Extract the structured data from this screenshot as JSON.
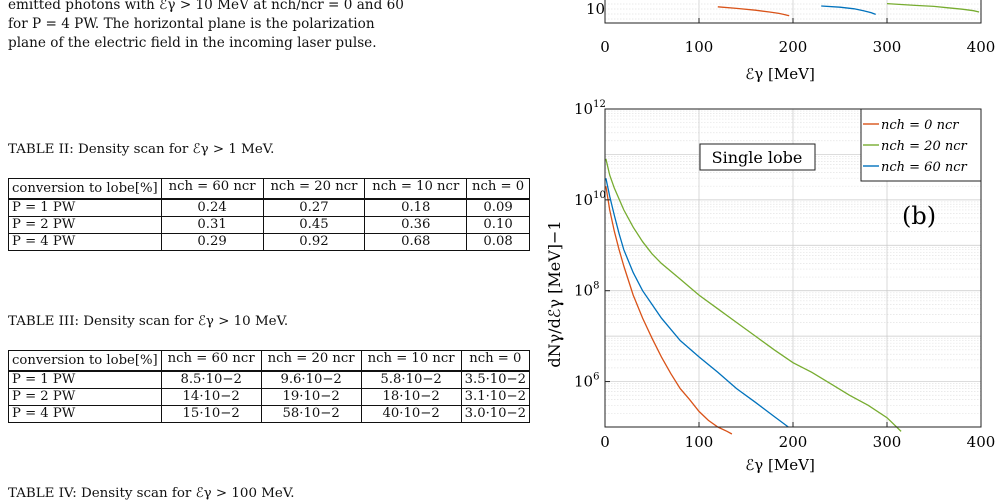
{
  "caption": {
    "lines": [
      "emitted photons with ℰγ > 10 MeV at nch/ncr = 0 and 60",
      "for P = 4 PW. The horizontal plane is the polarization",
      "plane of the electric field in the incoming laser pulse."
    ]
  },
  "tables": [
    {
      "title": "TABLE II: Density scan for ℰγ > 1 MeV.",
      "header": [
        "conversion to lobe[%]",
        "nch = 60 ncr",
        "nch = 20 ncr",
        "nch = 10 ncr",
        "nch = 0"
      ],
      "rows": [
        [
          "P = 1 PW",
          "0.24",
          "0.27",
          "0.18",
          "0.09"
        ],
        [
          "P = 2 PW",
          "0.31",
          "0.45",
          "0.36",
          "0.10"
        ],
        [
          "P = 4 PW",
          "0.29",
          "0.92",
          "0.68",
          "0.08"
        ]
      ]
    },
    {
      "title": "TABLE III: Density scan for ℰγ > 10 MeV.",
      "header": [
        "conversion to lobe[%]",
        "nch = 60 ncr",
        "nch = 20 ncr",
        "nch = 10 ncr",
        "nch = 0"
      ],
      "rows": [
        [
          "P = 1 PW",
          "8.5·10−2",
          "9.6·10−2",
          "5.8·10−2",
          "3.5·10−2"
        ],
        [
          "P = 2 PW",
          "14·10−2",
          "19·10−2",
          "18·10−2",
          "3.1·10−2"
        ],
        [
          "P = 4 PW",
          "15·10−2",
          "58·10−2",
          "40·10−2",
          "3.0·10−2"
        ]
      ]
    },
    {
      "title": "TABLE IV: Density scan for ℰγ > 100 MeV."
    }
  ],
  "chart_data": [
    {
      "type": "line",
      "xlabel": "ℰγ [MeV]",
      "x_ticks": [
        "0",
        "100",
        "200",
        "300",
        "400"
      ],
      "xlim": [
        0,
        400
      ],
      "y_ticks": [
        "10"
      ],
      "grid": true,
      "legend": "none",
      "series": [
        {
          "color": "#d95319",
          "x": [
            120,
            140,
            160,
            175,
            185,
            190,
            196
          ],
          "y": [
            80,
            50,
            30,
            18,
            12,
            9,
            6
          ]
        },
        {
          "color": "#0072bd",
          "x": [
            230,
            250,
            265,
            275,
            283,
            288
          ],
          "y": [
            100,
            70,
            45,
            25,
            15,
            9
          ]
        },
        {
          "color": "#77ac30",
          "x": [
            300,
            330,
            350,
            365,
            380,
            392,
            398
          ],
          "y": [
            200,
            120,
            90,
            60,
            40,
            26,
            18
          ]
        }
      ]
    },
    {
      "type": "line",
      "annotation": "Single lobe",
      "panel_label": "(b)",
      "xlabel": "ℰγ [MeV]",
      "ylabel": "dNγ/dℰγ [MeV]−1",
      "xlim": [
        0,
        400
      ],
      "ylim_log10": [
        5,
        12
      ],
      "log_y": true,
      "x_ticks": [
        "0",
        "100",
        "200",
        "300",
        "400"
      ],
      "y_ticks": [
        "10^6",
        "10^8",
        "10^10",
        "10^12"
      ],
      "grid": true,
      "legend": "top-right",
      "legend_labels": [
        "nch = 0 ncr",
        "nch = 20 ncr",
        "nch = 60 ncr"
      ],
      "series": [
        {
          "name": "nch = 0 ncr",
          "color": "#d95319",
          "x": [
            1,
            5,
            10,
            15,
            20,
            30,
            40,
            50,
            60,
            70,
            80,
            90,
            100,
            110,
            120,
            130,
            135
          ],
          "y": [
            20000000000.0,
            6000000000.0,
            2000000000.0,
            800000000.0,
            350000000.0,
            80000000.0,
            25000000.0,
            9000000.0,
            3500000.0,
            1500000.0,
            700000.0,
            400000.0,
            220000.0,
            140000.0,
            100000.0,
            80000.0,
            70000.0
          ]
        },
        {
          "name": "nch = 20 ncr",
          "color": "#77ac30",
          "x": [
            1,
            5,
            10,
            20,
            30,
            40,
            50,
            60,
            80,
            100,
            120,
            140,
            160,
            180,
            200,
            220,
            240,
            260,
            280,
            300,
            315
          ],
          "y": [
            80000000000.0,
            35000000000.0,
            18000000000.0,
            6000000000.0,
            2500000000.0,
            1200000000.0,
            650000000.0,
            400000000.0,
            180000000.0,
            80000000.0,
            40000000.0,
            20000000.0,
            10000000.0,
            5000000.0,
            2600000.0,
            1600000.0,
            900000.0,
            500000.0,
            300000.0,
            160000.0,
            80000.0
          ]
        },
        {
          "name": "nch = 60 ncr",
          "color": "#0072bd",
          "x": [
            1,
            5,
            10,
            15,
            20,
            30,
            40,
            50,
            60,
            80,
            100,
            120,
            140,
            160,
            180,
            195
          ],
          "y": [
            30000000000.0,
            12000000000.0,
            4500000000.0,
            1800000000.0,
            800000000.0,
            250000000.0,
            100000000.0,
            50000000.0,
            25000000.0,
            8000000.0,
            3500000.0,
            1600000.0,
            700000.0,
            350000.0,
            170000.0,
            100000.0
          ]
        }
      ]
    }
  ]
}
